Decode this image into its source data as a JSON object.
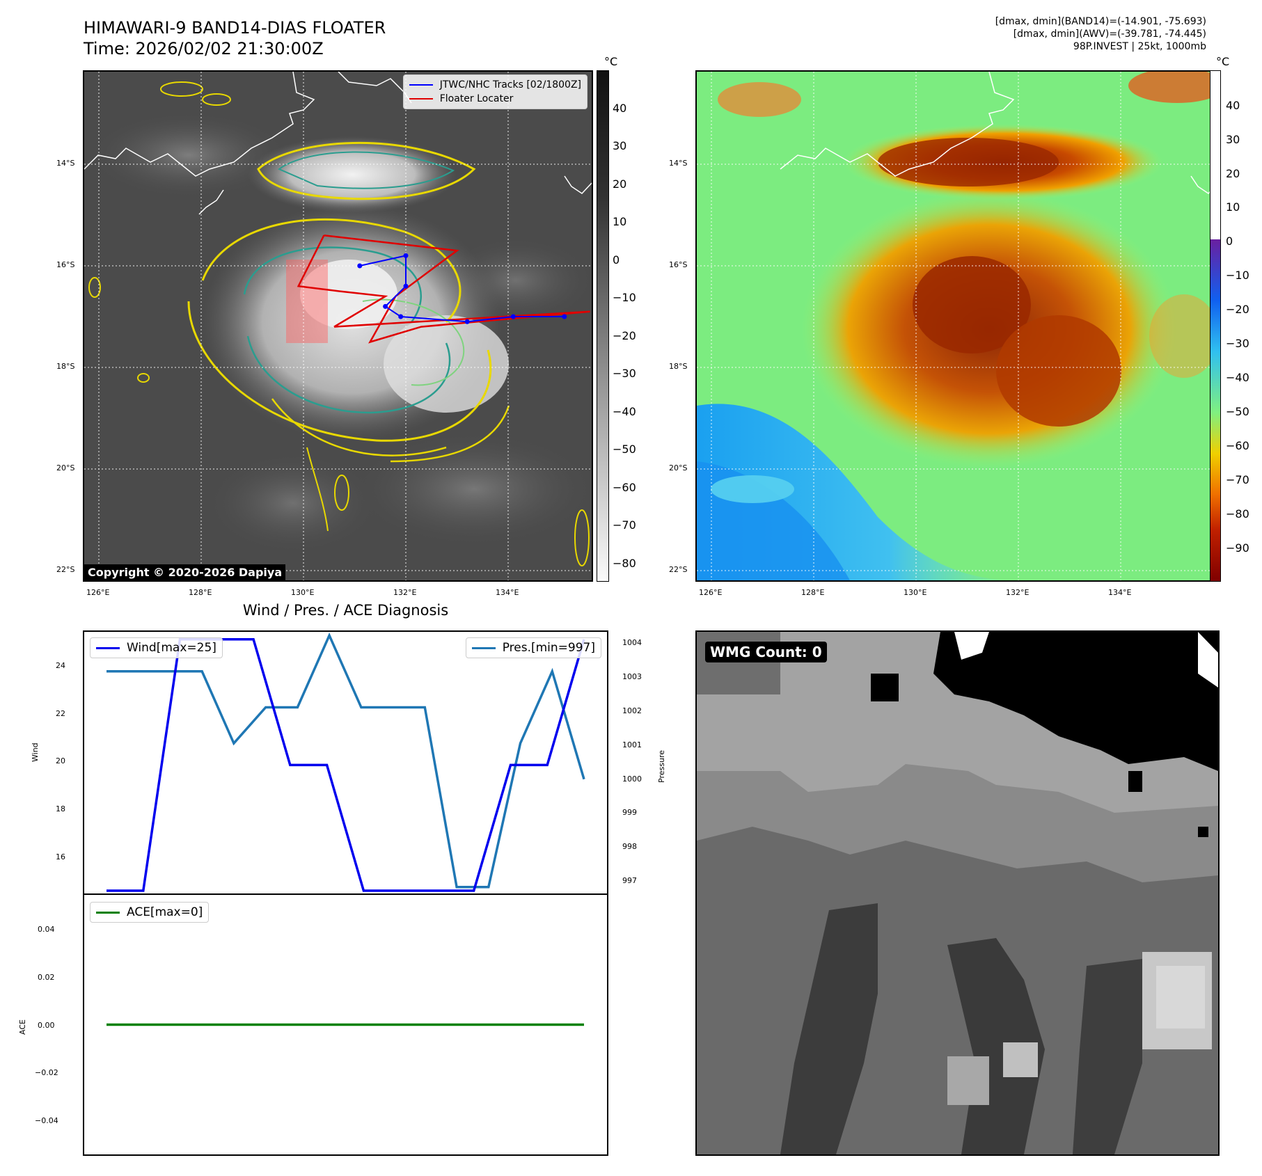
{
  "header": {
    "title_line1": "HIMAWARI-9 BAND14-DIAS FLOATER",
    "title_line2": "Time: 2026/02/02 21:30:00Z",
    "meta_line1": "[dmax, dmin](BAND14)=(-14.901, -75.693)",
    "meta_line2": "[dmax, dmin](AWV)=(-39.781, -74.445)",
    "meta_line3": "98P.INVEST | 25kt, 1000mb"
  },
  "map": {
    "lon_ticks": [
      "126°E",
      "128°E",
      "130°E",
      "132°E",
      "134°E"
    ],
    "lat_ticks": [
      "14°S",
      "16°S",
      "18°S",
      "20°S",
      "22°S"
    ],
    "legend_tracks": "JTWC/NHC Tracks [02/1800Z]",
    "legend_floater": "Floater Locater",
    "copyright": "Copyright © 2020-2026 Dapiya",
    "track_color": "#0000ff",
    "floater_color": "#e00000",
    "jtwc_track": [
      [
        131.1,
        -16.0
      ],
      [
        132.0,
        -15.8
      ],
      [
        132.0,
        -16.4
      ],
      [
        131.6,
        -16.8
      ],
      [
        131.9,
        -17.0
      ],
      [
        133.2,
        -17.1
      ],
      [
        134.1,
        -17.0
      ],
      [
        135.1,
        -17.0
      ]
    ],
    "floater_track": [
      [
        130.4,
        -15.4
      ],
      [
        133.0,
        -15.7
      ],
      [
        131.8,
        -16.6
      ],
      [
        131.3,
        -17.5
      ],
      [
        132.3,
        -17.2
      ],
      [
        135.6,
        -16.9
      ],
      [
        130.6,
        -17.2
      ],
      [
        131.6,
        -16.6
      ],
      [
        130.7,
        -16.5
      ],
      [
        129.9,
        -16.4
      ],
      [
        130.4,
        -15.4
      ]
    ]
  },
  "colorbar_left": {
    "unit": "°C",
    "ticks": [
      "40",
      "30",
      "20",
      "10",
      "0",
      "−10",
      "−20",
      "−30",
      "−40",
      "−50",
      "−60",
      "−70",
      "−80"
    ]
  },
  "colorbar_right": {
    "unit": "°C",
    "ticks": [
      "40",
      "30",
      "20",
      "10",
      "0",
      "−10",
      "−20",
      "−30",
      "−40",
      "−50",
      "−60",
      "−70",
      "−80",
      "−90"
    ]
  },
  "diagnosis": {
    "title": "Wind / Pres. / ACE Diagnosis",
    "wind_label": "Wind",
    "pres_label": "Pressure",
    "ace_label": "ACE",
    "legend_wind": "Wind[max=25]",
    "legend_pres": "Pres.[min=997]",
    "legend_ace": "ACE[max=0]",
    "wind_ticks": [
      "16",
      "18",
      "20",
      "22",
      "24"
    ],
    "pres_ticks": [
      "997",
      "998",
      "999",
      "1000",
      "1001",
      "1002",
      "1003",
      "1004"
    ],
    "ace_ticks": [
      "−0.04",
      "−0.02",
      "0.00",
      "0.02",
      "0.04"
    ]
  },
  "wmg": {
    "label": "WMG Count: 0"
  },
  "chart_data": {
    "type": "line",
    "wind": {
      "name": "Wind[max=25]",
      "color": "#0000ee",
      "values": [
        15,
        15,
        25,
        25,
        25,
        20,
        20,
        15,
        15,
        15,
        15,
        20,
        20,
        25
      ],
      "ylim": [
        15,
        25.3
      ]
    },
    "pressure": {
      "name": "Pres.[min=997]",
      "color": "#1f77b4",
      "values": [
        1003,
        1003,
        1003,
        1003,
        1001,
        1002,
        1002,
        1004,
        1002,
        1002,
        1002,
        997,
        997,
        1001,
        1003,
        1000
      ],
      "ylim": [
        996.9,
        1004.1
      ]
    },
    "ace": {
      "name": "ACE[max=0]",
      "color": "#008000",
      "values": [
        0,
        0
      ],
      "ylim": [
        -0.05,
        0.05
      ]
    }
  }
}
